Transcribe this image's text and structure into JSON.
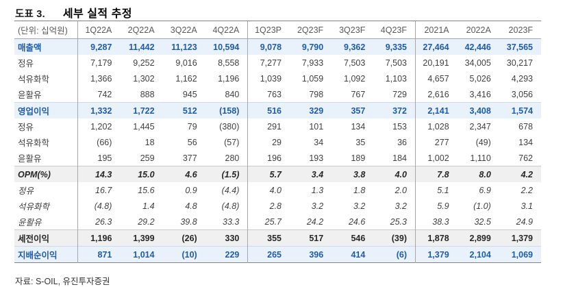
{
  "title": {
    "label": "도표 3.",
    "text": "세부 실적 추정"
  },
  "table": {
    "unit_header": "(단위: 십억원)",
    "columns": [
      "1Q22A",
      "2Q22A",
      "3Q22A",
      "4Q22A",
      "1Q23P",
      "2Q23F",
      "3Q23F",
      "4Q23F",
      "2021A",
      "2022A",
      "2023F"
    ],
    "group_separator_after_value_columns": [
      0,
      4,
      8
    ],
    "rows": [
      {
        "label": "매출액",
        "style": "highlight-blue",
        "values": [
          "9,287",
          "11,442",
          "11,123",
          "10,594",
          "9,078",
          "9,790",
          "9,362",
          "9,335",
          "27,464",
          "42,446",
          "37,565"
        ]
      },
      {
        "label": "정유",
        "style": "normal",
        "values": [
          "7,179",
          "9,252",
          "9,016",
          "8,558",
          "7,277",
          "7,933",
          "7,503",
          "7,503",
          "20,191",
          "34,005",
          "30,217"
        ]
      },
      {
        "label": "석유화학",
        "style": "normal",
        "values": [
          "1,366",
          "1,302",
          "1,162",
          "1,196",
          "1,039",
          "1,059",
          "1,092",
          "1,103",
          "4,657",
          "5,026",
          "4,293"
        ]
      },
      {
        "label": "윤활유",
        "style": "normal",
        "values": [
          "742",
          "888",
          "945",
          "840",
          "763",
          "798",
          "767",
          "729",
          "2,616",
          "3,416",
          "3,056"
        ]
      },
      {
        "label": "영업이익",
        "style": "highlight-blue",
        "values": [
          "1,332",
          "1,722",
          "512",
          "(158)",
          "516",
          "329",
          "357",
          "372",
          "2,141",
          "3,408",
          "1,574"
        ]
      },
      {
        "label": "정유",
        "style": "normal",
        "values": [
          "1,202",
          "1,445",
          "79",
          "(380)",
          "291",
          "101",
          "134",
          "153",
          "1,028",
          "2,347",
          "678"
        ]
      },
      {
        "label": "석유화학",
        "style": "normal",
        "values": [
          "(66)",
          "18",
          "56",
          "(57)",
          "29",
          "34",
          "35",
          "36",
          "277",
          "(49)",
          "134"
        ]
      },
      {
        "label": "윤활유",
        "style": "normal",
        "values": [
          "195",
          "259",
          "377",
          "280",
          "196",
          "193",
          "189",
          "184",
          "1,002",
          "1,110",
          "762"
        ]
      },
      {
        "label": "OPM(%)",
        "style": "highlight-gray-italic",
        "values": [
          "14.3",
          "15.0",
          "4.6",
          "(1.5)",
          "5.7",
          "3.4",
          "3.8",
          "4.0",
          "7.8",
          "8.0",
          "4.2"
        ]
      },
      {
        "label": "정유",
        "style": "italic",
        "values": [
          "16.7",
          "15.6",
          "0.9",
          "(4.4)",
          "4.0",
          "1.3",
          "1.8",
          "2.0",
          "5.1",
          "6.9",
          "2.2"
        ]
      },
      {
        "label": "석유화학",
        "style": "italic",
        "values": [
          "(4.8)",
          "1.4",
          "4.8",
          "(4.8)",
          "2.8",
          "3.2",
          "3.2",
          "3.2",
          "5.9",
          "(1.0)",
          "3.1"
        ]
      },
      {
        "label": "윤활유",
        "style": "italic",
        "values": [
          "26.3",
          "29.2",
          "39.8",
          "33.3",
          "25.7",
          "24.2",
          "24.6",
          "25.3",
          "38.3",
          "32.5",
          "24.9"
        ]
      },
      {
        "label": "세전이익",
        "style": "highlight-gray-bold",
        "values": [
          "1,196",
          "1,399",
          "(26)",
          "330",
          "355",
          "517",
          "546",
          "(39)",
          "1,878",
          "2,899",
          "1,379"
        ]
      },
      {
        "label": "지배순이익",
        "style": "highlight-blue",
        "values": [
          "871",
          "1,014",
          "(10)",
          "229",
          "265",
          "396",
          "414",
          "(6)",
          "1,379",
          "2,104",
          "1,069"
        ]
      }
    ]
  },
  "footer": {
    "source": "자료: S-OIL, 유진투자증권"
  },
  "colors": {
    "accent_blue_text": "#1f5ba8",
    "highlight_blue_bg": "#e9f2fb",
    "highlight_gray_bg": "#f0f0f0",
    "header_text": "#595959",
    "body_text": "#404040",
    "border_gray": "#808080"
  }
}
